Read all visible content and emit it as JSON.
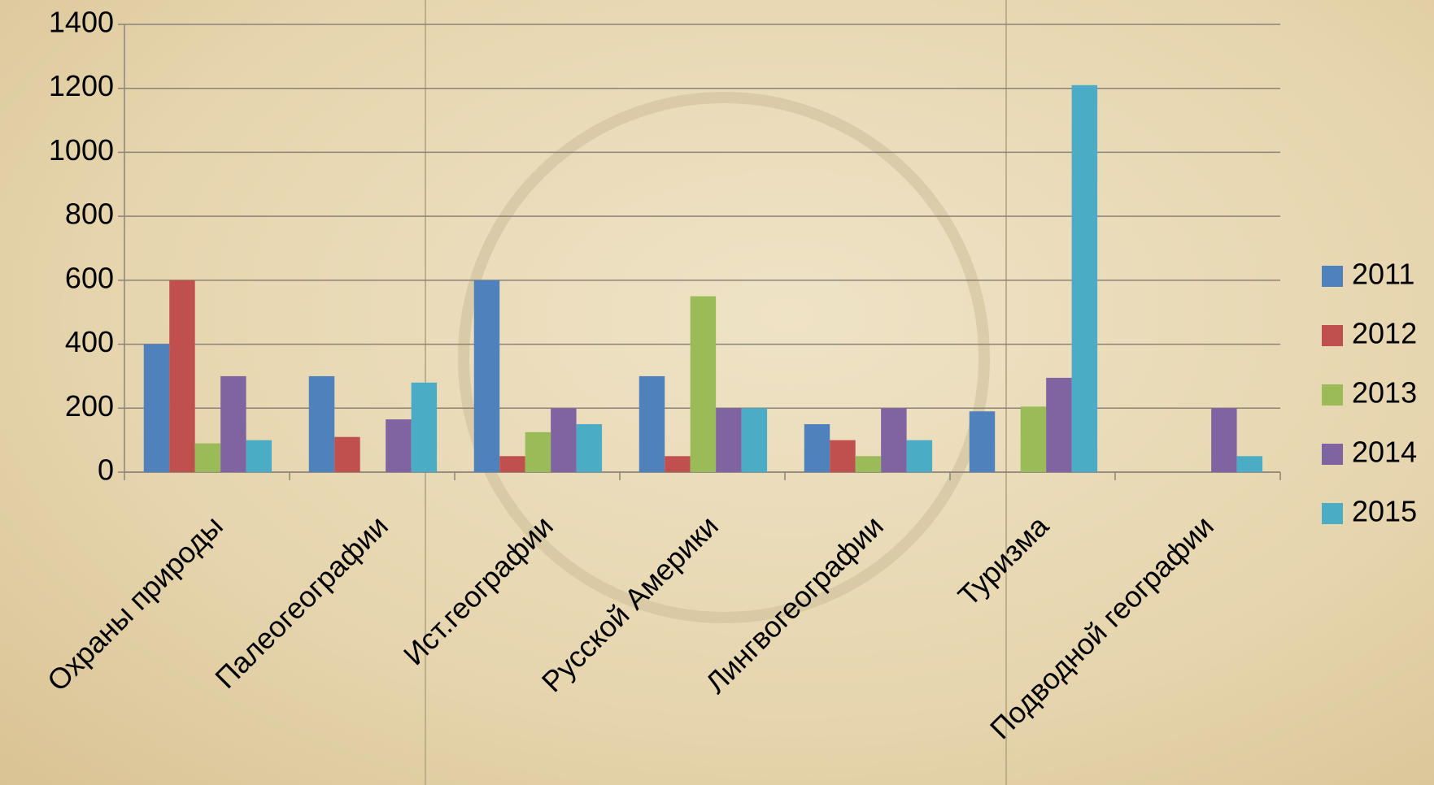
{
  "chart_data": {
    "type": "bar",
    "categories": [
      "Охраны природы",
      "Палеогеографии",
      "Ист.географии",
      "Русской Америки",
      "Лингвогеографии",
      "Туризма",
      "Подводной географии"
    ],
    "series": [
      {
        "name": "2011",
        "color": "#4f81bd",
        "values": [
          400,
          300,
          600,
          300,
          150,
          190,
          null
        ]
      },
      {
        "name": "2012",
        "color": "#c0504d",
        "values": [
          600,
          110,
          50,
          50,
          100,
          null,
          null
        ]
      },
      {
        "name": "2013",
        "color": "#9bbb59",
        "values": [
          90,
          null,
          125,
          550,
          50,
          205,
          null
        ]
      },
      {
        "name": "2014",
        "color": "#8064a2",
        "values": [
          300,
          165,
          200,
          200,
          200,
          295,
          200
        ]
      },
      {
        "name": "2015",
        "color": "#4bacc6",
        "values": [
          100,
          280,
          150,
          200,
          100,
          1210,
          50
        ]
      }
    ],
    "ylim": [
      0,
      1400
    ],
    "yticks": [
      0,
      200,
      400,
      600,
      800,
      1000,
      1200,
      1400
    ],
    "grid": true,
    "legend": "right"
  }
}
